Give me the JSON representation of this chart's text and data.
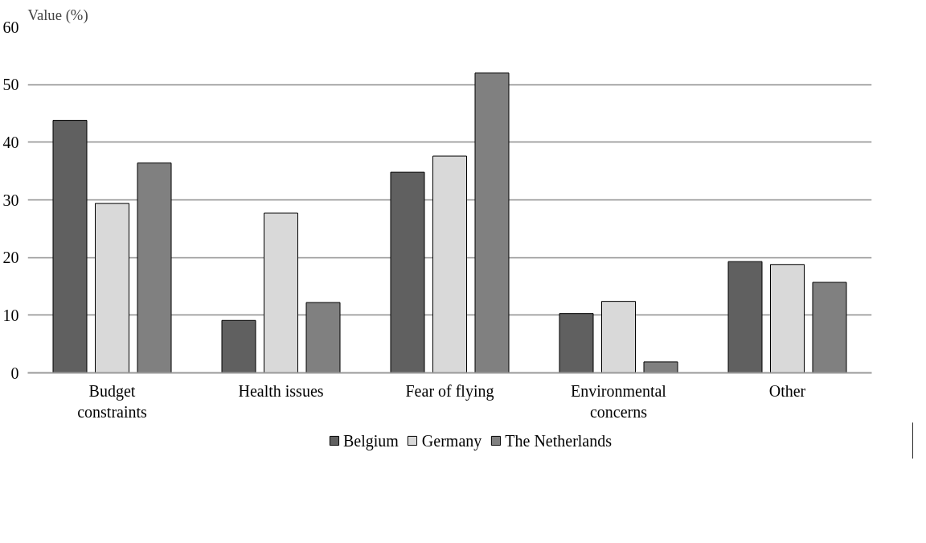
{
  "chart_data": {
    "type": "bar",
    "ylabel": "Value (%)",
    "categories": [
      "Budget constraints",
      "Health issues",
      "Fear of flying",
      "Environmental concerns",
      "Other"
    ],
    "series": [
      {
        "name": "Belgium",
        "color": "#606060",
        "values": [
          43.8,
          9.1,
          34.8,
          10.3,
          19.3
        ]
      },
      {
        "name": "Germany",
        "color": "#d9d9d9",
        "values": [
          29.4,
          27.7,
          37.6,
          12.4,
          18.8
        ]
      },
      {
        "name": "The Netherlands",
        "color": "#808080",
        "values": [
          36.4,
          12.2,
          52.0,
          1.9,
          15.7
        ]
      }
    ],
    "ylim": [
      0,
      60
    ],
    "yticks": [
      0,
      10,
      20,
      30,
      40,
      50,
      60
    ],
    "grid": "y",
    "legend": "bottom"
  }
}
